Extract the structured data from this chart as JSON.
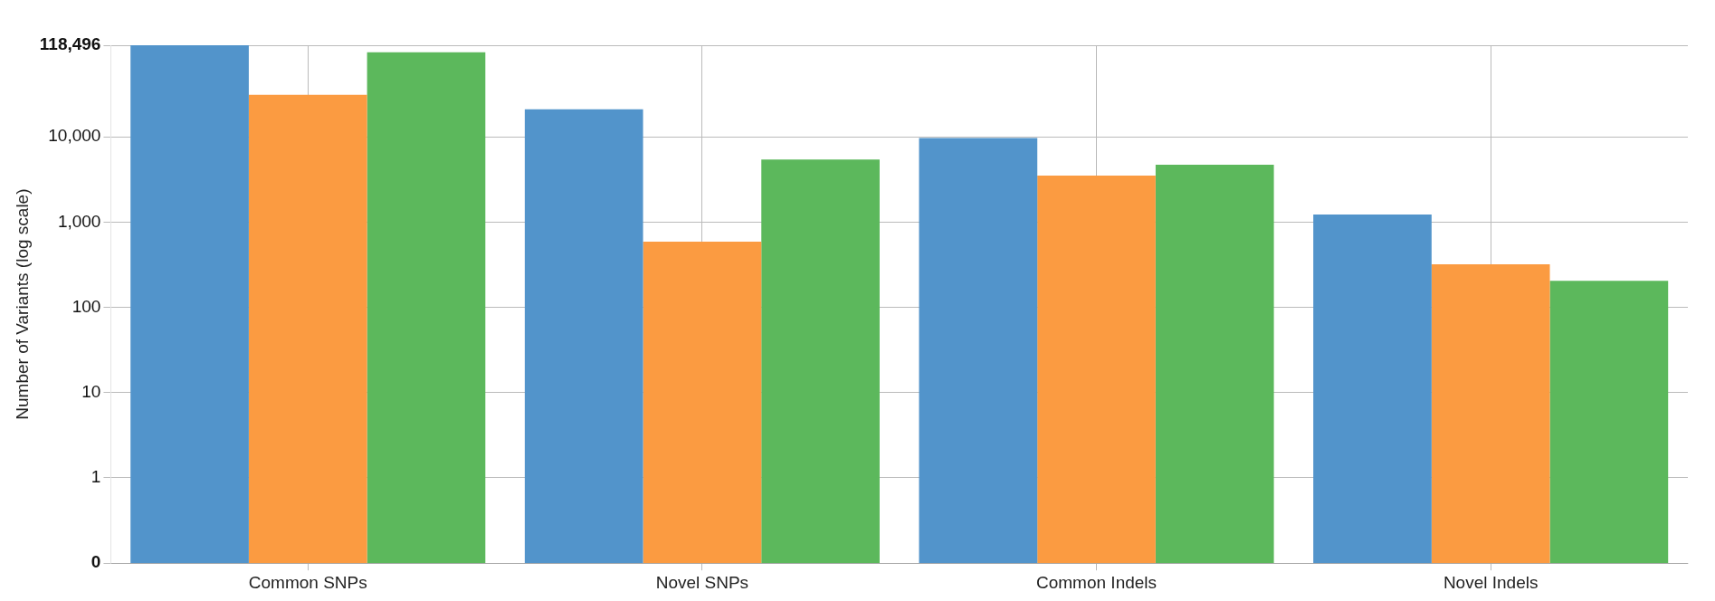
{
  "chart_data": {
    "type": "bar",
    "ylabel": "Number of Variants (log scale)",
    "categories": [
      "Common SNPs",
      "Novel SNPs",
      "Common Indels",
      "Novel Indels"
    ],
    "series": [
      {
        "color": "#5294cb",
        "values": [
          118496,
          21000,
          9700,
          1230
        ]
      },
      {
        "color": "#fb9b41",
        "values": [
          31000,
          590,
          3500,
          320
        ]
      },
      {
        "color": "#5cb85c",
        "values": [
          98000,
          5400,
          4700,
          205
        ]
      }
    ],
    "log": true,
    "ylim": [
      0.1,
      118496
    ],
    "yticks": [
      {
        "value": 0.1,
        "label": "0"
      },
      1,
      10,
      100,
      {
        "value": 1000,
        "label": "1,000"
      },
      {
        "value": 10000,
        "label": "10,000"
      },
      {
        "value": 118496,
        "label": "118,496"
      }
    ],
    "grid": true,
    "legend": false
  }
}
